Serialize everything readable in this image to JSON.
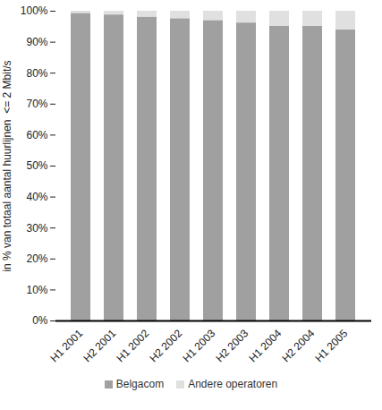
{
  "chart_data": {
    "type": "bar",
    "stacked": true,
    "categories": [
      "H1 2001",
      "H2 2001",
      "H1 2002",
      "H2 2002",
      "H1 2003",
      "H2 2003",
      "H1 2004",
      "H2 2004",
      "H1 2005"
    ],
    "series": [
      {
        "name": "Belgacom",
        "color": "#a0a0a0",
        "values": [
          99.3,
          98.8,
          98.1,
          97.6,
          97.0,
          96.2,
          95.2,
          95.1,
          94.0
        ]
      },
      {
        "name": "Andere operatoren",
        "color": "#e0e0e0",
        "values": [
          0.7,
          1.2,
          1.9,
          2.4,
          3.0,
          3.8,
          4.8,
          4.9,
          6.0
        ]
      }
    ],
    "y_label": "in % van totaal aantal huurlijnen  <= 2 Mbit/s",
    "ylim": [
      0,
      100
    ],
    "yticks": [
      {
        "value": 0,
        "label": "0%"
      },
      {
        "value": 10,
        "label": "10%"
      },
      {
        "value": 20,
        "label": "20%"
      },
      {
        "value": 30,
        "label": "30%"
      },
      {
        "value": 40,
        "label": "40%"
      },
      {
        "value": 50,
        "label": "50%"
      },
      {
        "value": 60,
        "label": "60%"
      },
      {
        "value": 70,
        "label": "70%"
      },
      {
        "value": 80,
        "label": "80%"
      },
      {
        "value": 90,
        "label": "90%"
      },
      {
        "value": 100,
        "label": "100%"
      }
    ],
    "grid": false,
    "legend": "bottom"
  }
}
